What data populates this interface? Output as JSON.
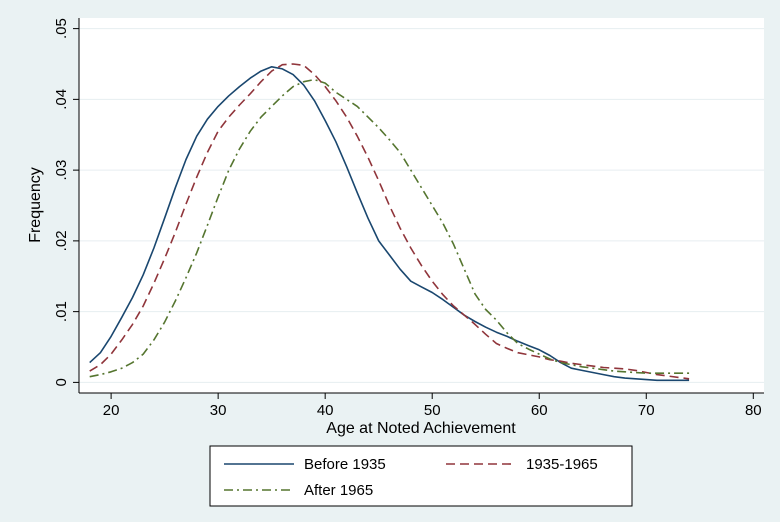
{
  "chart_data": {
    "type": "line",
    "xlabel": "Age at Noted Achievement",
    "ylabel": "Frequency",
    "xlim": [
      17,
      81
    ],
    "ylim": [
      -0.0015,
      0.0515
    ],
    "x_ticks": [
      {
        "value": 20,
        "label": "20"
      },
      {
        "value": 30,
        "label": "30"
      },
      {
        "value": 40,
        "label": "40"
      },
      {
        "value": 50,
        "label": "50"
      },
      {
        "value": 60,
        "label": "60"
      },
      {
        "value": 70,
        "label": "70"
      },
      {
        "value": 80,
        "label": "80"
      }
    ],
    "y_ticks": [
      {
        "value": 0,
        "label": "0"
      },
      {
        "value": 0.01,
        "label": ".01"
      },
      {
        "value": 0.02,
        "label": ".02"
      },
      {
        "value": 0.03,
        "label": ".03"
      },
      {
        "value": 0.04,
        "label": ".04"
      },
      {
        "value": 0.05,
        "label": ".05"
      }
    ],
    "grid": "horizontal",
    "legend_position": "bottom",
    "series": [
      {
        "name": "Before 1935",
        "color": "#1a476f",
        "dash": "solid",
        "points": [
          [
            18,
            0.0028
          ],
          [
            19,
            0.0042
          ],
          [
            20,
            0.0065
          ],
          [
            21,
            0.0092
          ],
          [
            22,
            0.012
          ],
          [
            23,
            0.0152
          ],
          [
            24,
            0.019
          ],
          [
            25,
            0.0232
          ],
          [
            26,
            0.0275
          ],
          [
            27,
            0.0315
          ],
          [
            28,
            0.0348
          ],
          [
            29,
            0.0372
          ],
          [
            30,
            0.039
          ],
          [
            31,
            0.0405
          ],
          [
            32,
            0.0418
          ],
          [
            33,
            0.043
          ],
          [
            34,
            0.044
          ],
          [
            35,
            0.0446
          ],
          [
            36,
            0.0443
          ],
          [
            37,
            0.0435
          ],
          [
            38,
            0.042
          ],
          [
            39,
            0.0398
          ],
          [
            40,
            0.037
          ],
          [
            41,
            0.034
          ],
          [
            42,
            0.0305
          ],
          [
            43,
            0.0268
          ],
          [
            44,
            0.0232
          ],
          [
            45,
            0.02
          ],
          [
            46,
            0.018
          ],
          [
            47,
            0.016
          ],
          [
            48,
            0.0143
          ],
          [
            49,
            0.0135
          ],
          [
            50,
            0.0127
          ],
          [
            51,
            0.0117
          ],
          [
            52,
            0.0106
          ],
          [
            53,
            0.0095
          ],
          [
            54,
            0.0086
          ],
          [
            55,
            0.0078
          ],
          [
            56,
            0.0071
          ],
          [
            57,
            0.0065
          ],
          [
            58,
            0.0058
          ],
          [
            59,
            0.0052
          ],
          [
            60,
            0.0046
          ],
          [
            61,
            0.0038
          ],
          [
            62,
            0.0028
          ],
          [
            63,
            0.002
          ],
          [
            64,
            0.0017
          ],
          [
            65,
            0.0014
          ],
          [
            66,
            0.0011
          ],
          [
            67,
            0.0008
          ],
          [
            68,
            0.0006
          ],
          [
            69,
            0.0005
          ],
          [
            70,
            0.0004
          ],
          [
            71,
            0.0003
          ],
          [
            72,
            0.0003
          ],
          [
            73,
            0.0003
          ],
          [
            74,
            0.0003
          ]
        ]
      },
      {
        "name": "1935-1965",
        "color": "#90353b",
        "dash": "dashed",
        "points": [
          [
            18,
            0.0016
          ],
          [
            19,
            0.0025
          ],
          [
            20,
            0.004
          ],
          [
            21,
            0.006
          ],
          [
            22,
            0.0082
          ],
          [
            23,
            0.0108
          ],
          [
            24,
            0.014
          ],
          [
            25,
            0.0175
          ],
          [
            26,
            0.0212
          ],
          [
            27,
            0.0252
          ],
          [
            28,
            0.029
          ],
          [
            29,
            0.0325
          ],
          [
            30,
            0.0355
          ],
          [
            31,
            0.0375
          ],
          [
            32,
            0.0392
          ],
          [
            33,
            0.0408
          ],
          [
            34,
            0.0425
          ],
          [
            35,
            0.044
          ],
          [
            36,
            0.0449
          ],
          [
            37,
            0.045
          ],
          [
            38,
            0.0448
          ],
          [
            39,
            0.0435
          ],
          [
            40,
            0.0418
          ],
          [
            41,
            0.0398
          ],
          [
            42,
            0.0375
          ],
          [
            43,
            0.0348
          ],
          [
            44,
            0.0318
          ],
          [
            45,
            0.0285
          ],
          [
            46,
            0.025
          ],
          [
            47,
            0.0218
          ],
          [
            48,
            0.019
          ],
          [
            49,
            0.0165
          ],
          [
            50,
            0.0143
          ],
          [
            51,
            0.0124
          ],
          [
            52,
            0.0108
          ],
          [
            53,
            0.0095
          ],
          [
            54,
            0.0082
          ],
          [
            55,
            0.0068
          ],
          [
            56,
            0.0055
          ],
          [
            57,
            0.0048
          ],
          [
            58,
            0.0042
          ],
          [
            59,
            0.0039
          ],
          [
            60,
            0.0036
          ],
          [
            61,
            0.0032
          ],
          [
            62,
            0.003
          ],
          [
            63,
            0.0027
          ],
          [
            64,
            0.0025
          ],
          [
            65,
            0.0023
          ],
          [
            66,
            0.0021
          ],
          [
            67,
            0.002
          ],
          [
            68,
            0.0019
          ],
          [
            69,
            0.0017
          ],
          [
            70,
            0.0014
          ],
          [
            71,
            0.0011
          ],
          [
            72,
            0.0009
          ],
          [
            73,
            0.0007
          ],
          [
            74,
            0.0005
          ]
        ]
      },
      {
        "name": "After 1965",
        "color": "#55752f",
        "dash": "dashdot",
        "points": [
          [
            18,
            0.0008
          ],
          [
            19,
            0.0011
          ],
          [
            20,
            0.0015
          ],
          [
            21,
            0.002
          ],
          [
            22,
            0.0028
          ],
          [
            23,
            0.004
          ],
          [
            24,
            0.006
          ],
          [
            25,
            0.0085
          ],
          [
            26,
            0.0115
          ],
          [
            27,
            0.0148
          ],
          [
            28,
            0.0183
          ],
          [
            29,
            0.0222
          ],
          [
            30,
            0.0262
          ],
          [
            31,
            0.03
          ],
          [
            32,
            0.033
          ],
          [
            33,
            0.0355
          ],
          [
            34,
            0.0375
          ],
          [
            35,
            0.039
          ],
          [
            36,
            0.0405
          ],
          [
            37,
            0.0418
          ],
          [
            38,
            0.0425
          ],
          [
            39,
            0.0428
          ],
          [
            40,
            0.0423
          ],
          [
            41,
            0.041
          ],
          [
            42,
            0.04
          ],
          [
            43,
            0.039
          ],
          [
            44,
            0.0375
          ],
          [
            45,
            0.036
          ],
          [
            46,
            0.0343
          ],
          [
            47,
            0.0325
          ],
          [
            48,
            0.03
          ],
          [
            49,
            0.0275
          ],
          [
            50,
            0.025
          ],
          [
            51,
            0.0225
          ],
          [
            52,
            0.0195
          ],
          [
            53,
            0.016
          ],
          [
            54,
            0.0125
          ],
          [
            55,
            0.0103
          ],
          [
            56,
            0.0088
          ],
          [
            57,
            0.007
          ],
          [
            58,
            0.0055
          ],
          [
            59,
            0.0047
          ],
          [
            60,
            0.004
          ],
          [
            61,
            0.0033
          ],
          [
            62,
            0.0028
          ],
          [
            63,
            0.0025
          ],
          [
            64,
            0.0022
          ],
          [
            65,
            0.002
          ],
          [
            66,
            0.0018
          ],
          [
            67,
            0.0016
          ],
          [
            68,
            0.0015
          ],
          [
            69,
            0.0014
          ],
          [
            70,
            0.0013
          ],
          [
            71,
            0.0013
          ],
          [
            72,
            0.0013
          ],
          [
            73,
            0.0013
          ],
          [
            74,
            0.0013
          ]
        ]
      }
    ]
  }
}
